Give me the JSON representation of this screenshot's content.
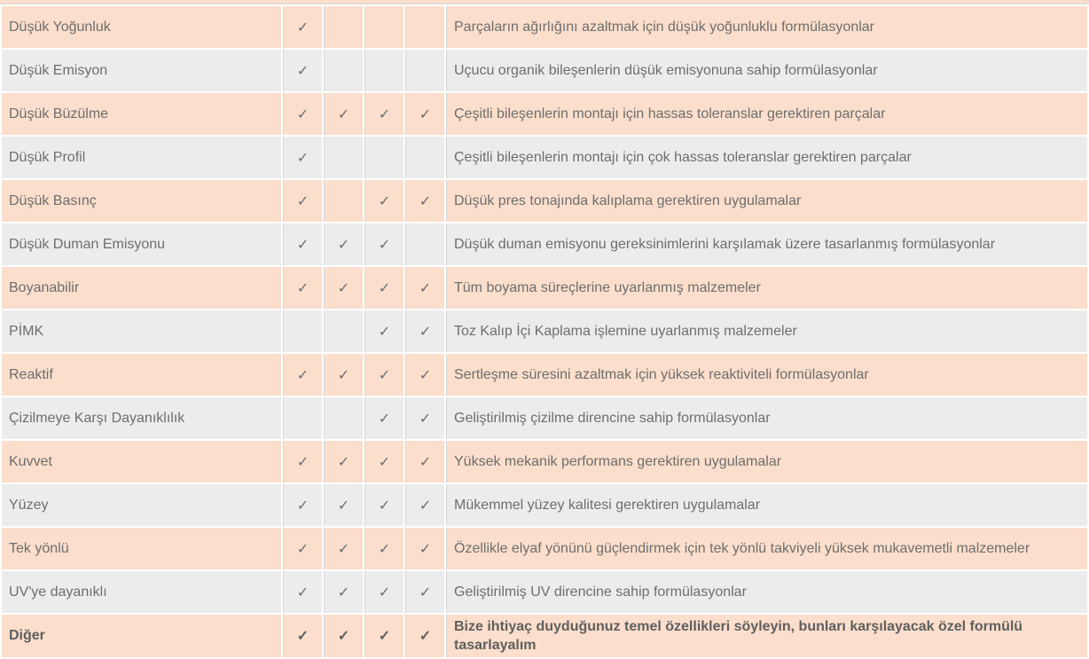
{
  "table": {
    "check_symbol": "✓",
    "colors": {
      "row_accent_bg": "#FBDECB",
      "row_alt_bg": "#ECECEC",
      "text": "#6E6E6E",
      "bold_text": "#5F5F5F",
      "check": "#7A7A7A",
      "grid_line": "#D6D6D6"
    },
    "rows": [
      {
        "feature": "Düşük Yoğunluk",
        "checks": [
          true,
          false,
          false,
          false
        ],
        "description": "Parçaların ağırlığını azaltmak için düşük yoğunluklu formülasyonlar",
        "bold": false
      },
      {
        "feature": "Düşük Emisyon",
        "checks": [
          true,
          false,
          false,
          false
        ],
        "description": "Uçucu organik bileşenlerin düşük emisyonuna sahip formülasyonlar",
        "bold": false
      },
      {
        "feature": "Düşük Büzülme",
        "checks": [
          true,
          true,
          true,
          true
        ],
        "description": "Çeşitli bileşenlerin montajı için hassas toleranslar gerektiren parçalar",
        "bold": false
      },
      {
        "feature": "Düşük Profil",
        "checks": [
          true,
          false,
          false,
          false
        ],
        "description": "Çeşitli bileşenlerin montajı için çok hassas toleranslar gerektiren parçalar",
        "bold": false
      },
      {
        "feature": "Düşük Basınç",
        "checks": [
          true,
          false,
          true,
          true
        ],
        "description": "Düşük pres tonajında kalıplama gerektiren uygulamalar",
        "bold": false
      },
      {
        "feature": "Düşük Duman Emisyonu",
        "checks": [
          true,
          true,
          true,
          false
        ],
        "description": "Düşük duman emisyonu gereksinimlerini karşılamak üzere tasarlanmış formülasyonlar",
        "bold": false
      },
      {
        "feature": "Boyanabilir",
        "checks": [
          true,
          true,
          true,
          true
        ],
        "description": "Tüm boyama süreçlerine uyarlanmış malzemeler",
        "bold": false
      },
      {
        "feature": "PİMK",
        "checks": [
          false,
          false,
          true,
          true
        ],
        "description": "Toz Kalıp İçi Kaplama işlemine uyarlanmış malzemeler",
        "bold": false
      },
      {
        "feature": "Reaktif",
        "checks": [
          true,
          true,
          true,
          true
        ],
        "description": "Sertleşme süresini azaltmak için yüksek reaktiviteli formülasyonlar",
        "bold": false
      },
      {
        "feature": "Çizilmeye Karşı Dayanıklılık",
        "checks": [
          false,
          false,
          true,
          true
        ],
        "description": "Geliştirilmiş çizilme direncine sahip formülasyonlar",
        "bold": false
      },
      {
        "feature": "Kuvvet",
        "checks": [
          true,
          true,
          true,
          true
        ],
        "description": "Yüksek mekanik performans gerektiren uygulamalar",
        "bold": false
      },
      {
        "feature": "Yüzey",
        "checks": [
          true,
          true,
          true,
          true
        ],
        "description": "Mükemmel yüzey kalitesi gerektiren uygulamalar",
        "bold": false
      },
      {
        "feature": "Tek yönlü",
        "checks": [
          true,
          true,
          true,
          true
        ],
        "description": "Özellikle elyaf yönünü güçlendirmek için tek yönlü takviyeli yüksek mukavemetli malzemeler",
        "bold": false
      },
      {
        "feature": "UV'ye dayanıklı",
        "checks": [
          true,
          true,
          true,
          true
        ],
        "description": "Geliştirilmiş UV direncine sahip formülasyonlar",
        "bold": false
      },
      {
        "feature": "Diğer",
        "checks": [
          true,
          true,
          true,
          true
        ],
        "description": "Bize ihtiyaç duyduğunuz temel özellikleri söyleyin, bunları karşılayacak özel formülü tasarlayalım",
        "bold": true
      }
    ]
  }
}
